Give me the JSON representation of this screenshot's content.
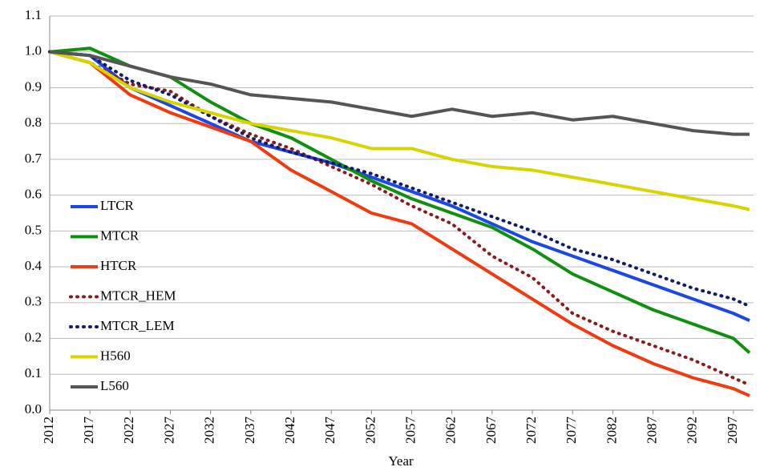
{
  "chart_data": {
    "type": "line",
    "x_label": "Year",
    "x": [
      2012,
      2017,
      2022,
      2027,
      2032,
      2037,
      2042,
      2047,
      2052,
      2057,
      2062,
      2067,
      2072,
      2077,
      2082,
      2087,
      2092,
      2097,
      2099
    ],
    "xlim": [
      2012,
      2099.5
    ],
    "xticks": [
      2012,
      2017,
      2022,
      2027,
      2032,
      2037,
      2042,
      2047,
      2052,
      2057,
      2062,
      2067,
      2072,
      2077,
      2082,
      2087,
      2092,
      2097
    ],
    "ylim": [
      0,
      1.1
    ],
    "yticks": [
      {
        "value": 0,
        "label": "0.0"
      },
      0.1,
      0.2,
      0.3,
      0.4,
      0.5,
      0.6,
      0.7,
      0.8,
      0.9,
      {
        "value": 1,
        "label": "1.0"
      },
      1.1
    ],
    "grid": true,
    "legend": "left",
    "series": [
      {
        "name": "LTCR",
        "color": "#1a47e6",
        "dash": "solid",
        "values": [
          1.0,
          0.99,
          0.9,
          0.85,
          0.8,
          0.75,
          0.72,
          0.69,
          0.65,
          0.61,
          0.57,
          0.52,
          0.47,
          0.43,
          0.39,
          0.35,
          0.31,
          0.27,
          0.25
        ]
      },
      {
        "name": "MTCR",
        "color": "#109010",
        "dash": "solid",
        "values": [
          1.0,
          1.01,
          0.96,
          0.93,
          0.86,
          0.8,
          0.76,
          0.7,
          0.64,
          0.59,
          0.55,
          0.51,
          0.45,
          0.38,
          0.33,
          0.28,
          0.24,
          0.2,
          0.16
        ]
      },
      {
        "name": "HTCR",
        "color": "#f03a10",
        "dash": "solid",
        "values": [
          1.0,
          0.97,
          0.88,
          0.83,
          0.79,
          0.75,
          0.67,
          0.61,
          0.55,
          0.52,
          0.45,
          0.38,
          0.31,
          0.24,
          0.18,
          0.13,
          0.09,
          0.06,
          0.04
        ]
      },
      {
        "name": "MTCR_HEM",
        "color": "#8b1a1a",
        "dash": "dotted",
        "values": [
          1.0,
          0.97,
          0.91,
          0.89,
          0.82,
          0.77,
          0.73,
          0.68,
          0.63,
          0.57,
          0.52,
          0.43,
          0.37,
          0.27,
          0.22,
          0.18,
          0.14,
          0.09,
          0.07
        ]
      },
      {
        "name": "MTCR_LEM",
        "color": "#101a70",
        "dash": "dotted",
        "values": [
          1.0,
          0.99,
          0.92,
          0.88,
          0.82,
          0.76,
          0.72,
          0.69,
          0.66,
          0.62,
          0.58,
          0.54,
          0.5,
          0.45,
          0.42,
          0.38,
          0.34,
          0.31,
          0.29
        ]
      },
      {
        "name": "H560",
        "color": "#d8d400",
        "dash": "solid",
        "values": [
          1.0,
          0.97,
          0.9,
          0.86,
          0.83,
          0.8,
          0.78,
          0.76,
          0.73,
          0.73,
          0.7,
          0.68,
          0.67,
          0.65,
          0.63,
          0.61,
          0.59,
          0.57,
          0.56
        ]
      },
      {
        "name": "L560",
        "color": "#555555",
        "dash": "solid",
        "values": [
          1.0,
          0.99,
          0.96,
          0.93,
          0.91,
          0.88,
          0.87,
          0.86,
          0.84,
          0.82,
          0.84,
          0.82,
          0.83,
          0.81,
          0.82,
          0.8,
          0.78,
          0.77,
          0.77
        ]
      }
    ]
  }
}
